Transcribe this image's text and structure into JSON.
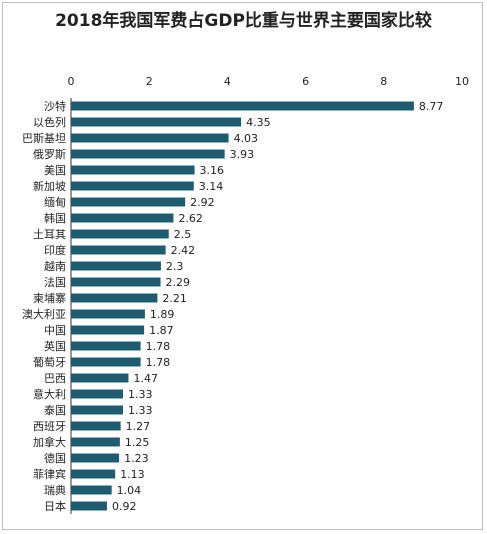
{
  "chart_data": {
    "type": "bar",
    "orientation": "horizontal",
    "title": "2018年我国军费占GDP比重与世界主要国家比较",
    "xlabel": "",
    "ylabel": "",
    "xlim": [
      0,
      10
    ],
    "x_ticks": [
      "0",
      "2",
      "4",
      "6",
      "8",
      "10"
    ],
    "x_axis_position": "top",
    "grid": false,
    "bar_color": "#1f5c73",
    "categories": [
      "沙特",
      "以色列",
      "巴斯基坦",
      "俄罗斯",
      "美国",
      "新加坡",
      "缅甸",
      "韩国",
      "土耳其",
      "印度",
      "越南",
      "法国",
      "柬埔寨",
      "澳大利亚",
      "中国",
      "英国",
      "葡萄牙",
      "巴西",
      "意大利",
      "泰国",
      "西班牙",
      "加拿大",
      "德国",
      "菲律宾",
      "瑞典",
      "日本"
    ],
    "values": [
      8.77,
      4.35,
      4.03,
      3.93,
      3.16,
      3.14,
      2.92,
      2.62,
      2.5,
      2.42,
      2.3,
      2.29,
      2.21,
      1.89,
      1.87,
      1.78,
      1.78,
      1.47,
      1.33,
      1.33,
      1.27,
      1.25,
      1.23,
      1.13,
      1.04,
      0.92
    ],
    "value_labels": [
      "8.77",
      "4.35",
      "4.03",
      "3.93",
      "3.16",
      "3.14",
      "2.92",
      "2.62",
      "2.5",
      "2.42",
      "2.3",
      "2.29",
      "2.21",
      "1.89",
      "1.87",
      "1.78",
      "1.78",
      "1.47",
      "1.33",
      "1.33",
      "1.27",
      "1.25",
      "1.23",
      "1.13",
      "1.04",
      "0.92"
    ]
  }
}
